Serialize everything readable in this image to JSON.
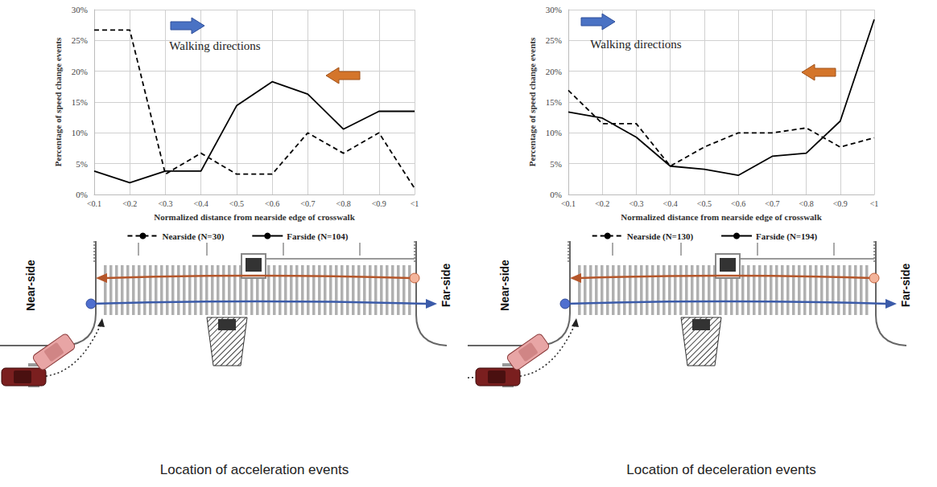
{
  "chart_data": [
    {
      "type": "line",
      "title": "Location of acceleration events",
      "x_label": "Normalized distance from nearside edge of crosswalk",
      "y_label": "Percentage of speed change events",
      "categories": [
        "<0.1",
        "<0.2",
        "<0.3",
        "<0.4",
        "<0.5",
        "<0.6",
        "<0.7",
        "<0.8",
        "<0.9",
        "<1"
      ],
      "series": [
        {
          "name": "Nearside (N=30)",
          "color": "#000000",
          "line_style": "dashed",
          "values": [
            26.7,
            26.7,
            3.3,
            6.7,
            3.3,
            3.3,
            10.0,
            6.7,
            10.0,
            1.0
          ]
        },
        {
          "name": "Farside (N=104)",
          "color": "#000000",
          "line_style": "solid",
          "values": [
            3.8,
            1.9,
            3.8,
            3.8,
            14.4,
            18.3,
            16.3,
            10.6,
            13.5,
            13.5
          ]
        }
      ],
      "ylim": [
        0,
        30
      ],
      "yticks": [
        {
          "value": 0,
          "label": "0%"
        },
        {
          "value": 5,
          "label": "5%"
        },
        {
          "value": 10,
          "label": "10%"
        },
        {
          "value": 15,
          "label": "15%"
        },
        {
          "value": 20,
          "label": "20%"
        },
        {
          "value": 25,
          "label": "25%"
        },
        {
          "value": 30,
          "label": "30%"
        }
      ],
      "grid": true,
      "legend": "bottom",
      "annotations": [
        "Walking directions",
        "Near-side",
        "Far-side"
      ]
    },
    {
      "type": "line",
      "title": "Location of deceleration events",
      "x_label": "Normalized distance from nearside edge of crosswalk",
      "y_label": "Percentage of speed change events",
      "categories": [
        "<0.1",
        "<0.2",
        "<0.3",
        "<0.4",
        "<0.5",
        "<0.6",
        "<0.7",
        "<0.8",
        "<0.9",
        "<1"
      ],
      "series": [
        {
          "name": "Nearside (N=130)",
          "color": "#000000",
          "line_style": "dashed",
          "values": [
            16.9,
            11.5,
            11.5,
            4.6,
            7.7,
            10.0,
            10.0,
            10.8,
            7.7,
            9.2
          ]
        },
        {
          "name": "Farside (N=194)",
          "color": "#000000",
          "line_style": "solid",
          "values": [
            13.4,
            12.4,
            9.3,
            4.6,
            4.1,
            3.1,
            6.2,
            6.7,
            11.9,
            28.4
          ]
        }
      ],
      "ylim": [
        0,
        30
      ],
      "yticks": [
        {
          "value": 0,
          "label": "0%"
        },
        {
          "value": 5,
          "label": "5%"
        },
        {
          "value": 10,
          "label": "10%"
        },
        {
          "value": 15,
          "label": "15%"
        },
        {
          "value": 20,
          "label": "20%"
        },
        {
          "value": 25,
          "label": "25%"
        },
        {
          "value": 30,
          "label": "30%"
        }
      ],
      "grid": true,
      "legend": "bottom",
      "annotations": [
        "Walking directions",
        "Near-side",
        "Far-side"
      ]
    }
  ]
}
